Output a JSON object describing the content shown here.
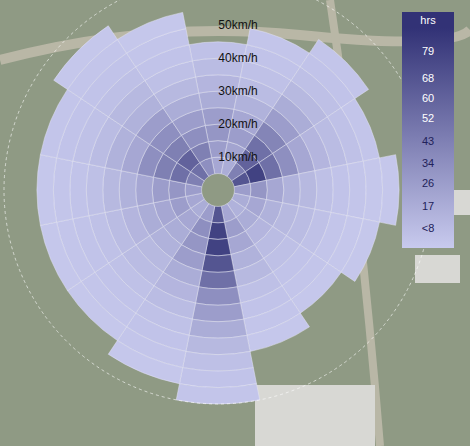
{
  "chart_data": {
    "type": "wind_rose",
    "x": [
      0,
      22.5,
      45,
      67.5,
      90,
      112.5,
      135,
      157.5,
      180,
      202.5,
      225,
      247.5,
      270,
      292.5,
      315,
      337.5
    ],
    "bins": [
      5,
      10,
      15,
      20,
      25,
      30,
      35,
      40,
      45,
      50,
      55,
      60,
      65
    ],
    "hours": [
      [
        20,
        26,
        30,
        26,
        17,
        12,
        8,
        5,
        0,
        0,
        0,
        0
      ],
      [
        17,
        22,
        26,
        20,
        14,
        8,
        5,
        4,
        3,
        0,
        0,
        0
      ],
      [
        43,
        60,
        52,
        40,
        26,
        17,
        10,
        6,
        4,
        3,
        0,
        0
      ],
      [
        68,
        79,
        52,
        34,
        20,
        12,
        8,
        5,
        3,
        0,
        0,
        0
      ],
      [
        26,
        30,
        20,
        14,
        10,
        6,
        4,
        3,
        2,
        2,
        0,
        0
      ],
      [
        17,
        20,
        14,
        10,
        8,
        5,
        3,
        2,
        2,
        0,
        0,
        0
      ],
      [
        14,
        17,
        12,
        8,
        6,
        4,
        3,
        2,
        0,
        0,
        0,
        0
      ],
      [
        20,
        26,
        20,
        14,
        10,
        6,
        4,
        3,
        2,
        0,
        0,
        0
      ],
      [
        68,
        79,
        79,
        68,
        52,
        34,
        26,
        17,
        10,
        6,
        4,
        3
      ],
      [
        26,
        34,
        30,
        26,
        17,
        12,
        8,
        5,
        4,
        3,
        2,
        0
      ],
      [
        17,
        20,
        17,
        14,
        10,
        8,
        5,
        4,
        3,
        2,
        0,
        0
      ],
      [
        20,
        26,
        20,
        17,
        12,
        8,
        5,
        4,
        3,
        2,
        0,
        0
      ],
      [
        26,
        30,
        26,
        20,
        14,
        10,
        6,
        4,
        3,
        2,
        0,
        0
      ],
      [
        43,
        52,
        43,
        34,
        20,
        14,
        8,
        5,
        4,
        3,
        0,
        0
      ],
      [
        52,
        60,
        43,
        34,
        26,
        14,
        10,
        6,
        4,
        3,
        2,
        0
      ],
      [
        34,
        43,
        34,
        26,
        17,
        10,
        6,
        4,
        3,
        2,
        0,
        0
      ]
    ],
    "ylim": [
      0,
      65
    ],
    "yticks": [
      {
        "value": 10,
        "label": "10km/h"
      },
      {
        "value": 20,
        "label": "20km/h"
      },
      {
        "value": 30,
        "label": "30km/h"
      },
      {
        "value": 40,
        "label": "40km/h"
      },
      {
        "value": 50,
        "label": "50km/h"
      }
    ],
    "colorbar": {
      "title": "hrs",
      "range": [
        0,
        88
      ],
      "ticks": [
        79,
        68,
        60,
        52,
        43,
        34,
        26,
        17,
        {
          "value": 8,
          "label": "<8"
        }
      ]
    }
  }
}
